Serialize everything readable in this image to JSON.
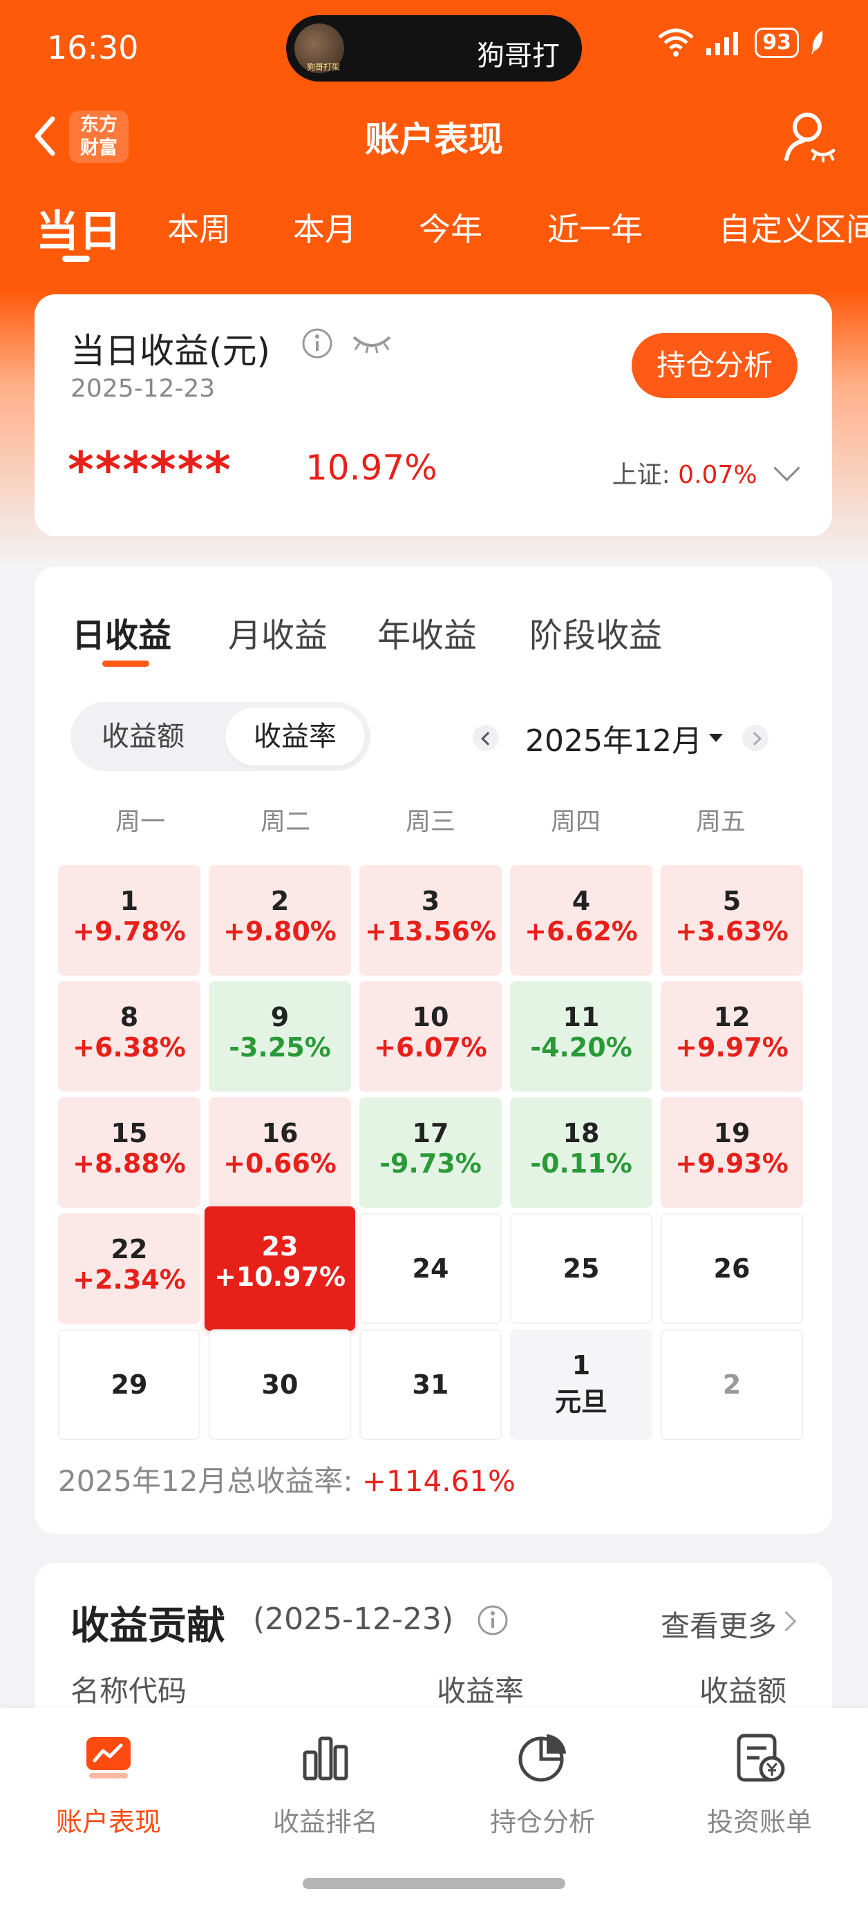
{
  "status_bar": {
    "time": "16:30",
    "island_text": "狗哥打",
    "island_caption": "狗哥打架",
    "battery": "93"
  },
  "nav": {
    "title": "账户表现",
    "logo_line1": "东方",
    "logo_line2": "财富"
  },
  "period_tabs": [
    "当日",
    "本周",
    "本月",
    "今年",
    "近一年",
    "自定义区间"
  ],
  "summary": {
    "label": "当日收益(元)",
    "date": "2025-12-23",
    "amount_masked": "******",
    "rate": "10.97%",
    "button": "持仓分析",
    "index_label": "上证:",
    "index_value": "0.07%"
  },
  "returns_tabs": [
    "日收益",
    "月收益",
    "年收益",
    "阶段收益"
  ],
  "segment": {
    "amount": "收益额",
    "rate": "收益率"
  },
  "month": "2025年12月",
  "weekdays": [
    "周一",
    "周二",
    "周三",
    "周四",
    "周五"
  ],
  "calendar": {
    "rows": [
      [
        {
          "day": "1",
          "value": "+9.78%"
        },
        {
          "day": "2",
          "value": "+9.80%"
        },
        {
          "day": "3",
          "value": "+13.56%"
        },
        {
          "day": "4",
          "value": "+6.62%"
        },
        {
          "day": "5",
          "value": "+3.63%"
        }
      ],
      [
        {
          "day": "8",
          "value": "+6.38%"
        },
        {
          "day": "9",
          "value": "-3.25%"
        },
        {
          "day": "10",
          "value": "+6.07%"
        },
        {
          "day": "11",
          "value": "-4.20%"
        },
        {
          "day": "12",
          "value": "+9.97%"
        }
      ],
      [
        {
          "day": "15",
          "value": "+8.88%"
        },
        {
          "day": "16",
          "value": "+0.66%"
        },
        {
          "day": "17",
          "value": "-9.73%"
        },
        {
          "day": "18",
          "value": "-0.11%"
        },
        {
          "day": "19",
          "value": "+9.93%"
        }
      ],
      [
        {
          "day": "22",
          "value": "+2.34%"
        },
        {
          "day": "23",
          "value": "+10.97%"
        },
        {
          "day": "24",
          "value": ""
        },
        {
          "day": "25",
          "value": ""
        },
        {
          "day": "26",
          "value": ""
        }
      ],
      [
        {
          "day": "29",
          "value": ""
        },
        {
          "day": "30",
          "value": ""
        },
        {
          "day": "31",
          "value": ""
        },
        {
          "day": "1",
          "value": "元旦"
        },
        {
          "day": "2",
          "value": ""
        }
      ]
    ]
  },
  "month_total": {
    "label": "2025年12月总收益率:",
    "value": "+114.61%"
  },
  "contribution": {
    "title": "收益贡献",
    "date": "(2025-12-23)",
    "more": "查看更多",
    "columns": [
      "名称代码",
      "收益率",
      "收益额"
    ]
  },
  "bottom_tabs": [
    "账户表现",
    "收益排名",
    "持仓分析",
    "投资账单"
  ],
  "colors": {
    "brand": "#ff5a0a",
    "up": "#e8201a",
    "down": "#2a9a36"
  }
}
